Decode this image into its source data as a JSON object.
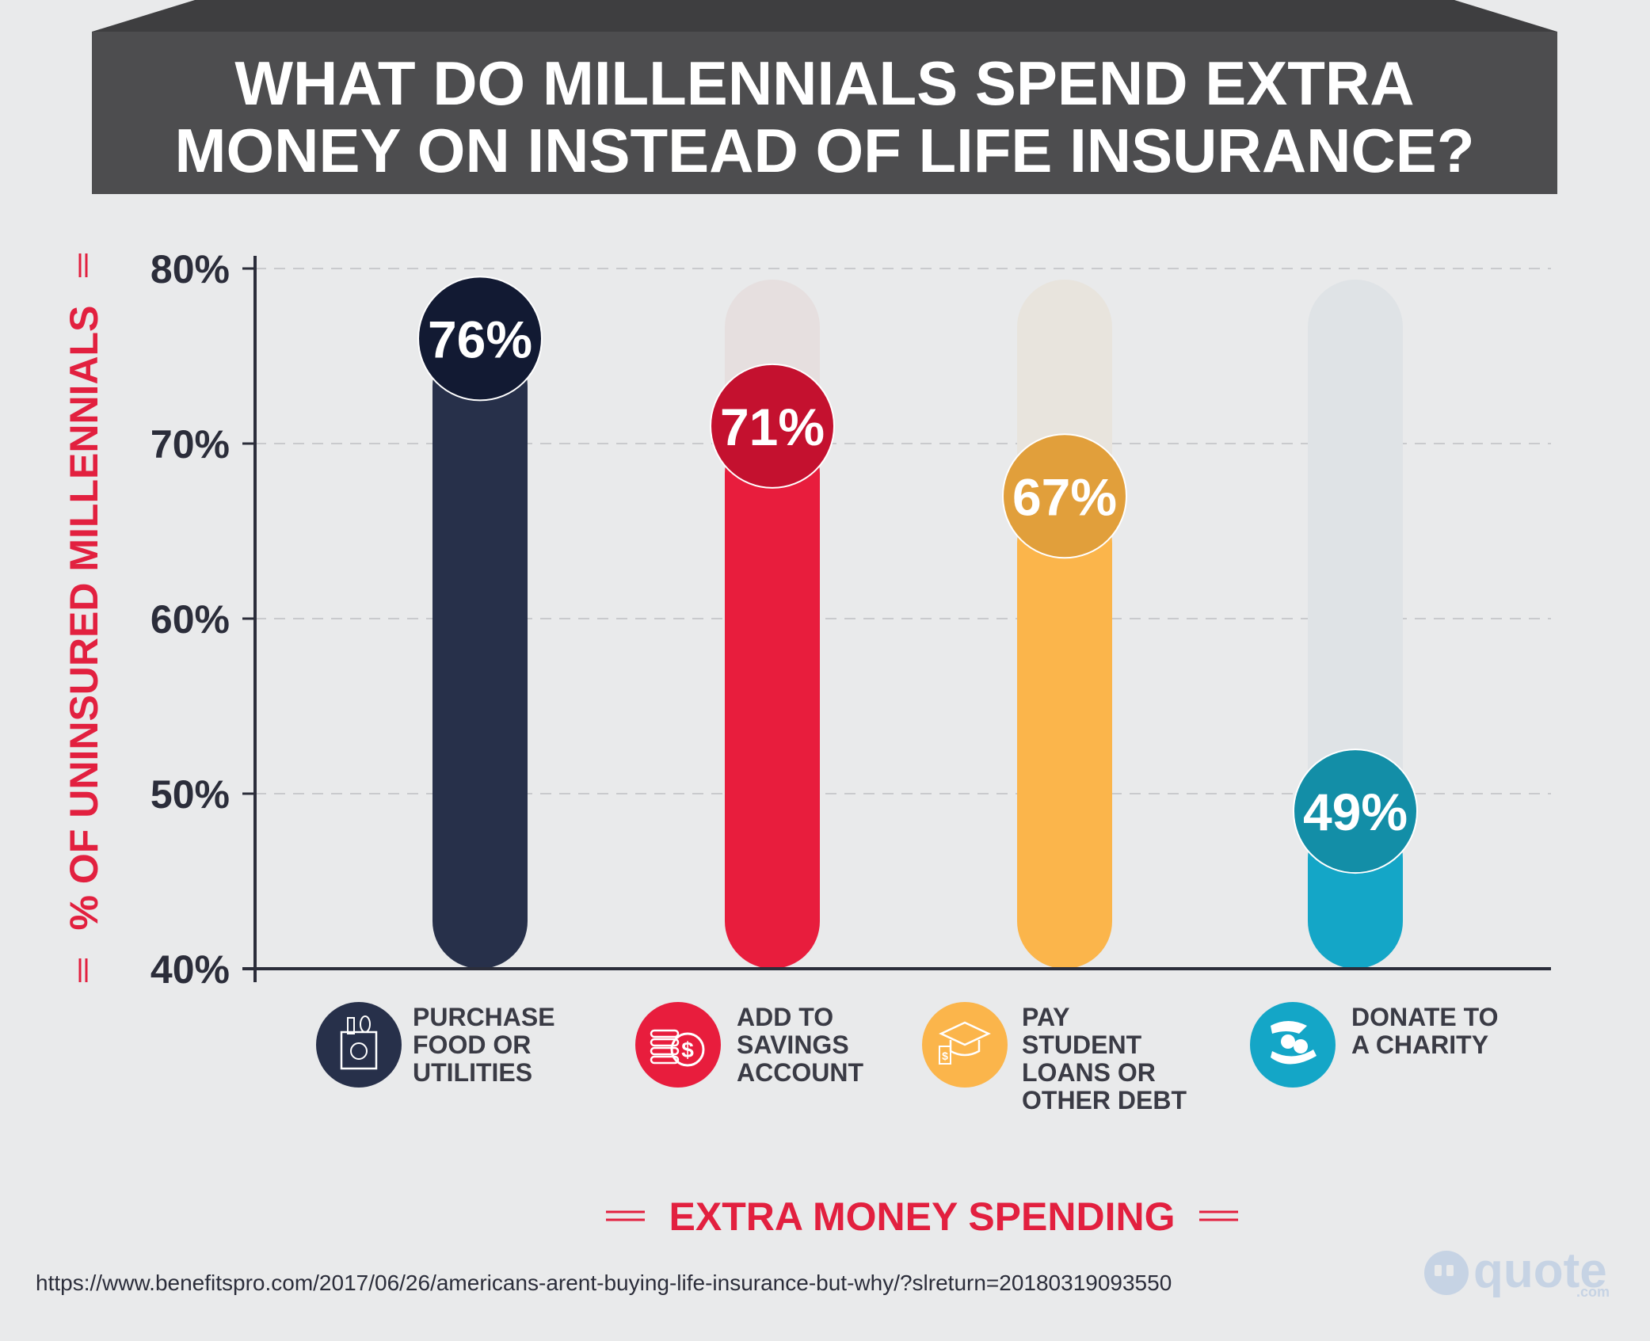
{
  "chart_data": {
    "type": "bar",
    "title_lines": [
      "WHAT DO MILLENNIALS SPEND EXTRA",
      "MONEY ON INSTEAD OF LIFE INSURANCE?"
    ],
    "ylabel": "% OF UNINSURED MILLENNIALS",
    "xlabel": "EXTRA MONEY SPENDING",
    "ylim": [
      40,
      80
    ],
    "yticks": [
      "40%",
      "50%",
      "60%",
      "70%",
      "80%"
    ],
    "grid": true,
    "categories": [
      [
        "PURCHASE",
        "FOOD OR",
        "UTILITIES"
      ],
      [
        "ADD TO",
        "SAVINGS",
        "ACCOUNT"
      ],
      [
        "PAY",
        "STUDENT",
        "LOANS OR",
        "OTHER DEBT"
      ],
      [
        "DONATE TO",
        "A CHARITY"
      ]
    ],
    "values": [
      76,
      71,
      67,
      49
    ],
    "value_labels": [
      "76%",
      "71%",
      "67%",
      "49%"
    ],
    "icons": [
      "grocery-bag-icon",
      "coins-dollar-icon",
      "graduation-cap-icon",
      "charity-hand-icon"
    ],
    "colors": {
      "bars": [
        "#27304a",
        "#e81d3d",
        "#fbb54b",
        "#14a6c7"
      ],
      "bubbles": [
        "#121a33",
        "#c4112f",
        "#e19f3b",
        "#138ea7"
      ],
      "tracks": [
        "#dbdcdf",
        "#e6dfdf",
        "#e8e4dd",
        "#dfe3e6"
      ],
      "title_bar": "#4d4d4f",
      "accent": "#e2203f"
    }
  },
  "source": "https://www.benefitspro.com/2017/06/26/americans-arent-buying-life-insurance-but-why/?slreturn=20180319093550",
  "logo": {
    "text": "quote",
    "suffix": ".com"
  }
}
